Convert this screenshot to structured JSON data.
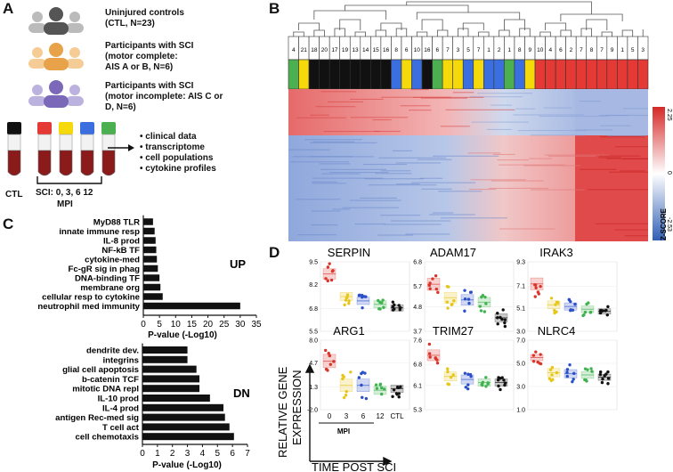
{
  "panels": {
    "a": {
      "letter": "A",
      "groups": [
        {
          "label": "Uninjured controls\n(CTL, N=23)",
          "color": "#555555"
        },
        {
          "label": "Participants with SCI\n(motor complete:\nAIS A or B, N=6)",
          "color": "#e8a24a"
        },
        {
          "label": "Participants with SCI\n(motor incomplete: AIS C or\nD, N=6)",
          "color": "#7b68b8"
        }
      ],
      "tube_colors": [
        "#111111",
        "#e53935",
        "#f5d90a",
        "#3b6fe0",
        "#4caf50"
      ],
      "ctl_label": "CTL",
      "sci_label": "SCI: 0, 3, 6 12",
      "mpi_label": "MPI",
      "outputs": [
        "clinical data",
        "transcriptome",
        "cell populations",
        "cytokine profiles"
      ]
    },
    "b": {
      "letter": "B",
      "cluster_numbers": [
        "4",
        "21",
        "18",
        "20",
        "17",
        "19",
        "13",
        "14",
        "15",
        "16",
        "8",
        "6",
        "10",
        "16",
        "6",
        "7",
        "3",
        "5",
        "7",
        "1",
        "2",
        "1",
        "8",
        "9",
        "10",
        "4",
        "6",
        "2",
        "7",
        "8",
        "7",
        "9",
        "1",
        "5",
        "3"
      ],
      "cluster_colors": [
        "#4caf50",
        "#f5d90a",
        "#111111",
        "#111111",
        "#111111",
        "#111111",
        "#111111",
        "#111111",
        "#111111",
        "#111111",
        "#3b6fe0",
        "#f5d90a",
        "#3b6fe0",
        "#111111",
        "#4caf50",
        "#f5d90a",
        "#f5d90a",
        "#3b6fe0",
        "#f5d90a",
        "#3b6fe0",
        "#3b6fe0",
        "#4caf50",
        "#3b6fe0",
        "#f5d90a",
        "#e53935",
        "#e53935",
        "#e53935",
        "#e53935",
        "#e53935",
        "#e53935",
        "#e53935",
        "#e53935",
        "#e53935",
        "#e53935",
        "#e53935"
      ],
      "colorbar_title": "Z-SCORE",
      "colorbar_max": "2.25",
      "colorbar_mid": "0",
      "colorbar_min": "-2.53"
    },
    "c": {
      "letter": "C",
      "up_label": "UP",
      "dn_label": "DN",
      "xlabel": "P-value (-Log10)"
    },
    "d": {
      "letter": "D",
      "ylabel_line1": "RELATIVE GENE",
      "ylabel_line2": "EXPRESSION",
      "xlabel": "TIME POST SCI",
      "x_ticks": [
        "0",
        "3",
        "6",
        "12",
        "CTL"
      ],
      "mpi_label": "MPI"
    }
  },
  "chart_data": [
    {
      "type": "bar",
      "orientation": "horizontal",
      "title": "UP",
      "xlabel": "P-value (-Log10)",
      "categories": [
        "MyD88 TLR",
        "innate immune resp",
        "IL-8 prod",
        "NF-kB TF",
        "cytokine-med",
        "Fc-gR sig in phag",
        "DNA-binding TF",
        "membrane org",
        "cellular resp to cytokine",
        "neutrophil med immunity"
      ],
      "values": [
        3,
        3.5,
        3.8,
        4,
        4.2,
        4.5,
        5,
        5.3,
        6,
        30
      ],
      "xlim": [
        0,
        35
      ],
      "ticks": [
        0,
        5,
        10,
        15,
        20,
        25,
        30,
        35
      ]
    },
    {
      "type": "bar",
      "orientation": "horizontal",
      "title": "DN",
      "xlabel": "P-value (-Log10)",
      "categories": [
        "dendrite dev.",
        "integrins",
        "glial cell apoptosis",
        "b-catenin TCF",
        "mitotic DNA repl",
        "IL-10 prod",
        "IL-4 prod",
        "antigen Rec-med sig",
        "T cell act",
        "cell chemotaxis"
      ],
      "values": [
        3.0,
        3.0,
        3.6,
        3.8,
        3.8,
        4.5,
        5.4,
        5.5,
        5.8,
        6.1
      ],
      "xlim": [
        0,
        7
      ],
      "ticks": [
        0,
        1,
        2,
        3,
        4,
        5,
        6,
        7
      ]
    },
    {
      "type": "scatter",
      "genes": [
        {
          "name": "SERPIN",
          "yticks": [
            "9.5",
            "8.2",
            "6.8",
            "5.5"
          ],
          "means": [
            8.8,
            7.5,
            7.25,
            7.05,
            6.85
          ],
          "spread": [
            0.5,
            0.4,
            0.35,
            0.35,
            0.3
          ]
        },
        {
          "name": "ADAM17",
          "yticks": [
            "6.8",
            "5.7",
            "4.8",
            "3.7"
          ],
          "means": [
            5.8,
            5.2,
            5.1,
            5.0,
            4.3
          ],
          "spread": [
            0.45,
            0.4,
            0.4,
            0.35,
            0.3
          ]
        },
        {
          "name": "IRAK3",
          "yticks": [
            "9.3",
            "7.1",
            "5.1",
            "3.0"
          ],
          "means": [
            7.3,
            5.4,
            5.25,
            5.0,
            4.8
          ],
          "spread": [
            0.9,
            0.6,
            0.55,
            0.5,
            0.4
          ]
        },
        {
          "name": "ARG1",
          "yticks": [
            "8.0",
            "4.7",
            "1.3",
            "-2.0"
          ],
          "means": [
            5.0,
            1.5,
            1.5,
            0.8,
            1.0
          ],
          "spread": [
            1.6,
            1.5,
            1.5,
            1.0,
            0.9
          ]
        },
        {
          "name": "TRIM27",
          "yticks": [
            "7.6",
            "6.8",
            "6.1",
            "5.3"
          ],
          "means": [
            7.1,
            6.4,
            6.3,
            6.2,
            6.2
          ],
          "spread": [
            0.3,
            0.25,
            0.25,
            0.2,
            0.2
          ]
        },
        {
          "name": "NLRC4",
          "yticks": [
            "7.0",
            "5.0",
            "3.0",
            "1.0"
          ],
          "means": [
            5.5,
            4.2,
            4.1,
            4.0,
            3.8
          ],
          "spread": [
            0.45,
            0.6,
            0.6,
            0.5,
            0.45
          ]
        }
      ],
      "group_colors": [
        "#d9342b",
        "#e6c619",
        "#2b4fc9",
        "#3fb34f",
        "#111111"
      ],
      "x_ticks": [
        "0",
        "3",
        "6",
        "12",
        "CTL"
      ]
    }
  ]
}
